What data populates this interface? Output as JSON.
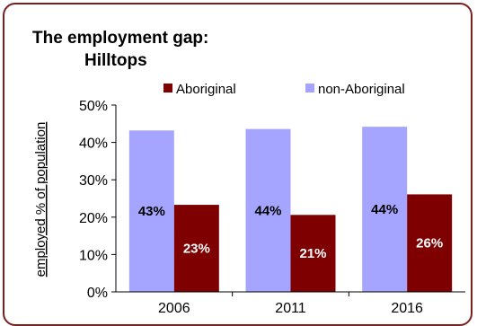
{
  "chart_data": {
    "type": "bar",
    "title_line1": "The employment gap:",
    "title_line2": "Hilltops",
    "ylabel": "employed % of population",
    "xlabel": "",
    "categories": [
      "2006",
      "2011",
      "2016"
    ],
    "ylim": [
      0,
      50
    ],
    "yticks": [
      "0%",
      "10%",
      "20%",
      "30%",
      "40%",
      "50%"
    ],
    "yticks_values": [
      0,
      10,
      20,
      30,
      40,
      50
    ],
    "series": [
      {
        "name": "non-Aboriginal",
        "color": "#a5a5ff",
        "values": [
          43.2,
          43.6,
          44.2
        ],
        "labels": [
          "43%",
          "44%",
          "44%"
        ],
        "label_color": "#000000"
      },
      {
        "name": "Aboriginal",
        "color": "#7f0000",
        "values": [
          23.3,
          20.6,
          26.1
        ],
        "labels": [
          "23%",
          "21%",
          "26%"
        ],
        "label_color": "#ffffff"
      }
    ],
    "legend_order": [
      "Aboriginal",
      "non-Aboriginal"
    ],
    "legend_position": "top-right",
    "grid": false,
    "frame_color": "#7a1f1f"
  }
}
